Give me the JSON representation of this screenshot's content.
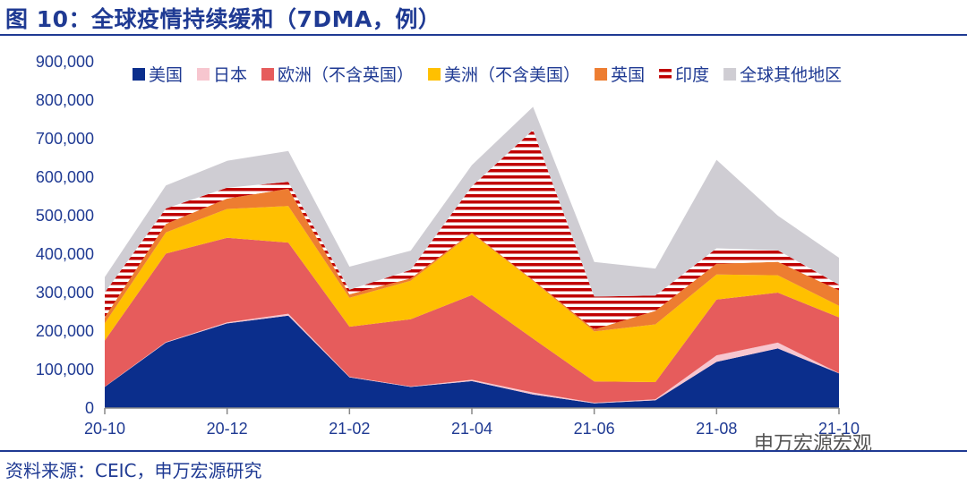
{
  "title": "图 10：全球疫情持续缓和（7DMA，例）",
  "source": "资料来源：CEIC，申万宏源研究",
  "watermark": "申万宏源宏观",
  "chart_data": {
    "type": "area",
    "stacked": true,
    "ylim": [
      0,
      900000
    ],
    "y_ticks": [
      0,
      100000,
      200000,
      300000,
      400000,
      500000,
      600000,
      700000,
      800000,
      900000
    ],
    "y_tick_labels": [
      "0",
      "100,000",
      "200,000",
      "300,000",
      "400,000",
      "500,000",
      "600,000",
      "700,000",
      "800,000",
      "900,000"
    ],
    "x_tick_labels": [
      "20-10",
      "20-12",
      "21-02",
      "21-04",
      "21-06",
      "21-08",
      "21-10"
    ],
    "x": [
      "20-10",
      "20-11",
      "20-12",
      "21-01",
      "21-02",
      "21-03",
      "21-04",
      "21-05",
      "21-06",
      "21-07",
      "21-08",
      "21-09",
      "21-10"
    ],
    "legend_position": "top",
    "series": [
      {
        "name": "美国",
        "color": "#0b2e8c",
        "pattern": "solid",
        "values": [
          55000,
          170000,
          220000,
          240000,
          80000,
          55000,
          70000,
          35000,
          12000,
          20000,
          120000,
          155000,
          90000
        ]
      },
      {
        "name": "日本",
        "color": "#f7c6cf",
        "pattern": "solid",
        "values": [
          500,
          1500,
          2500,
          5000,
          1500,
          1000,
          3500,
          5500,
          2000,
          2500,
          17000,
          15000,
          800
        ]
      },
      {
        "name": "欧洲（不含英国）",
        "color": "#e65c5c",
        "pattern": "solid",
        "values": [
          120000,
          230000,
          220000,
          185000,
          130000,
          175000,
          220000,
          140000,
          55000,
          45000,
          145000,
          130000,
          145000
        ]
      },
      {
        "name": "美洲（不含美国）",
        "color": "#ffc000",
        "pattern": "solid",
        "values": [
          45000,
          55000,
          75000,
          95000,
          75000,
          100000,
          160000,
          150000,
          130000,
          150000,
          65000,
          45000,
          30000
        ]
      },
      {
        "name": "英国",
        "color": "#ed7d31",
        "pattern": "solid",
        "values": [
          15000,
          22000,
          27000,
          45000,
          9000,
          6000,
          3000,
          2200,
          5500,
          35000,
          28000,
          35000,
          40000
        ]
      },
      {
        "name": "印度",
        "color": "#c00000",
        "pattern": "horizontal-stripes",
        "values": [
          65000,
          40000,
          28000,
          18000,
          12000,
          22000,
          120000,
          390000,
          85000,
          40000,
          40000,
          30000,
          15000
        ]
      },
      {
        "name": "全球其他地区",
        "color": "#cfcdd3",
        "pattern": "solid",
        "values": [
          40000,
          60000,
          70000,
          80000,
          60000,
          50000,
          55000,
          60000,
          90000,
          70000,
          230000,
          90000,
          70000
        ]
      }
    ]
  }
}
